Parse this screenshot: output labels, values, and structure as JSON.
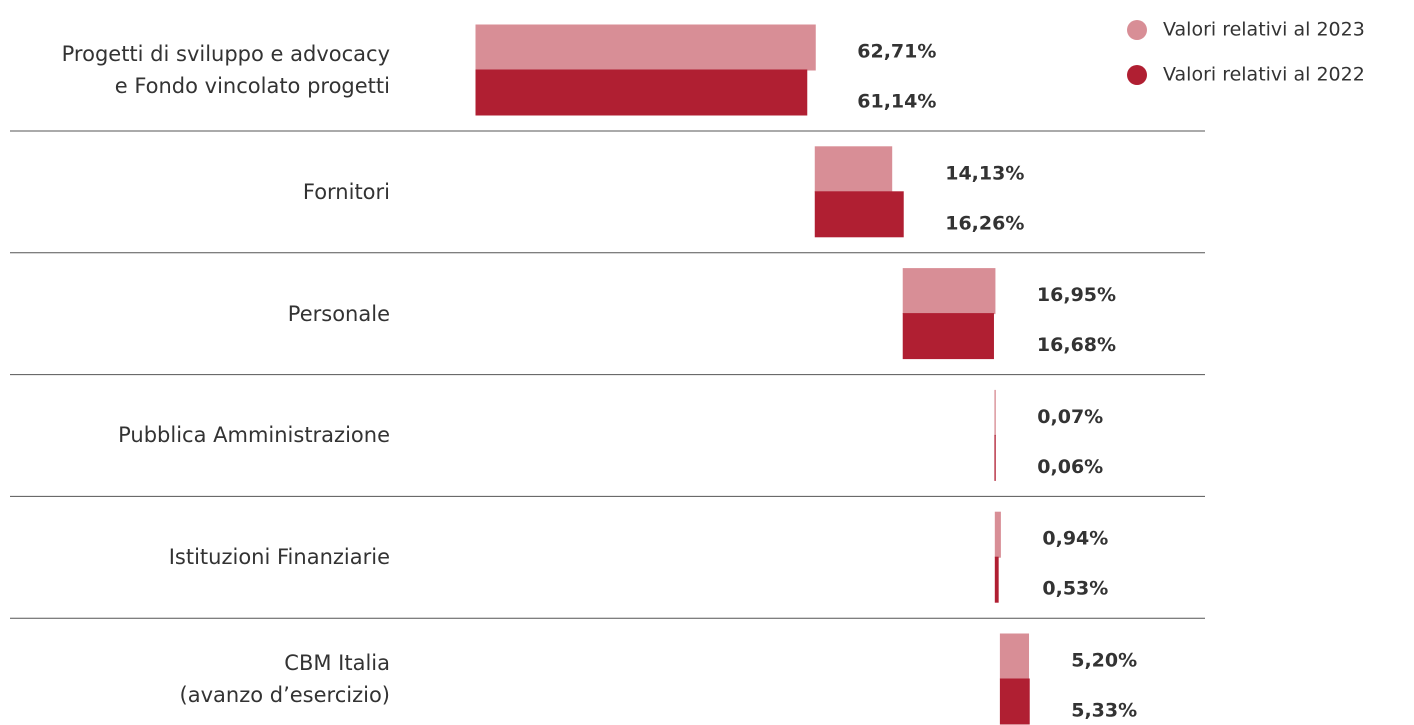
{
  "chart_data": {
    "type": "waterfall-bar",
    "categories": [
      "Progetti di sviluppo e advocacy\ne Fondo vincolato progetti",
      "Fornitori",
      "Personale",
      "Pubblica Amministrazione",
      "Istituzioni Finanziarie",
      "CBM Italia\n(avanzo d’esercizio)"
    ],
    "series": [
      {
        "name": "Valori relativi al 2023",
        "color": "#d88e96",
        "values": [
          62.71,
          14.13,
          16.95,
          0.07,
          0.94,
          5.2
        ],
        "value_labels": [
          "62,71%",
          "14,13%",
          "16,95%",
          "0,07%",
          "0,94%",
          "5,20%"
        ]
      },
      {
        "name": "Valori relativi al 2022",
        "color": "#b01f32",
        "values": [
          61.14,
          16.26,
          16.68,
          0.06,
          0.53,
          5.33
        ],
        "value_labels": [
          "61,14%",
          "16,26%",
          "16,68%",
          "0,06%",
          "0,53%",
          "5,33%"
        ]
      }
    ],
    "legend": "top-right"
  }
}
